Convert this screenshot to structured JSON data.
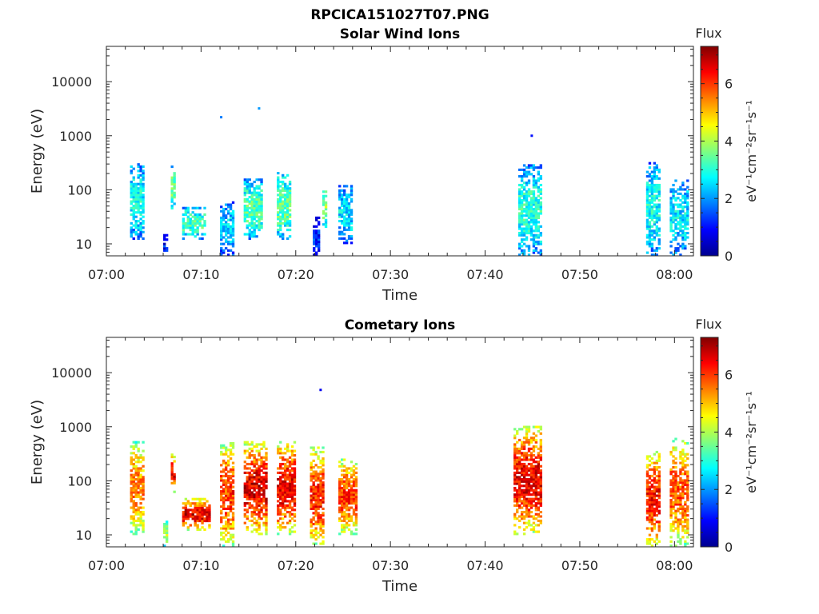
{
  "figure_title": "RPCICA151027T07.PNG",
  "chart_data": [
    {
      "type": "heatmap",
      "title": "Solar Wind Ions",
      "xlabel": "Time",
      "ylabel": "Energy (eV)",
      "yscale": "log",
      "xlim": [
        "07:00",
        "08:02"
      ],
      "ylim": [
        6,
        45000
      ],
      "x_ticks": [
        "07:00",
        "07:10",
        "07:20",
        "07:30",
        "07:40",
        "07:50",
        "08:00"
      ],
      "y_ticks": [
        "10",
        "100",
        "1000",
        "10000"
      ],
      "colorbar": {
        "label": "Flux",
        "units": "eV⁻¹cm⁻²sr⁻¹s⁻¹",
        "ticks": [
          "0",
          "2",
          "4",
          "6"
        ],
        "range": [
          0,
          7.3
        ],
        "colormap": "jet"
      },
      "grid": false,
      "blobs": [
        {
          "start": "07:02.5",
          "end": "07:04",
          "emin": 12,
          "emax": 300,
          "flux": 2.8
        },
        {
          "start": "07:06",
          "end": "07:06.5",
          "emin": 6,
          "emax": 16,
          "flux": 1.0
        },
        {
          "start": "07:06.8",
          "end": "07:07.2",
          "emin": 40,
          "emax": 280,
          "flux": 3.5
        },
        {
          "start": "07:08",
          "end": "07:10.5",
          "emin": 12,
          "emax": 45,
          "flux": 3.2
        },
        {
          "start": "07:12",
          "end": "07:13.5",
          "emin": 6,
          "emax": 60,
          "flux": 2.4
        },
        {
          "start": "07:14.5",
          "end": "07:16.5",
          "emin": 12,
          "emax": 150,
          "flux": 3.3
        },
        {
          "start": "07:18",
          "end": "07:19.5",
          "emin": 12,
          "emax": 200,
          "flux": 3.4
        },
        {
          "start": "07:21.8",
          "end": "07:22.5",
          "emin": 6,
          "emax": 30,
          "flux": 1.2
        },
        {
          "start": "07:22.8",
          "end": "07:23.3",
          "emin": 20,
          "emax": 120,
          "flux": 3.8
        },
        {
          "start": "07:24.5",
          "end": "07:26",
          "emin": 10,
          "emax": 120,
          "flux": 2.5
        },
        {
          "start": "07:43.5",
          "end": "07:46",
          "emin": 6,
          "emax": 280,
          "flux": 3.0
        },
        {
          "start": "07:57",
          "end": "07:58.5",
          "emin": 6,
          "emax": 300,
          "flux": 2.8
        },
        {
          "start": "07:59.5",
          "end": "08:01.5",
          "emin": 6,
          "emax": 150,
          "flux": 2.6
        }
      ],
      "scatter_points": [
        {
          "time": "07:12",
          "energy": 2200,
          "flux": 1.8
        },
        {
          "time": "07:16",
          "energy": 3200,
          "flux": 2.0
        },
        {
          "time": "07:44.8",
          "energy": 1000,
          "flux": 1.0
        }
      ]
    },
    {
      "type": "heatmap",
      "title": "Cometary Ions",
      "xlabel": "Time",
      "ylabel": "Energy (eV)",
      "yscale": "log",
      "xlim": [
        "07:00",
        "08:02"
      ],
      "ylim": [
        6,
        45000
      ],
      "x_ticks": [
        "07:00",
        "07:10",
        "07:20",
        "07:30",
        "07:40",
        "07:50",
        "08:00"
      ],
      "y_ticks": [
        "10",
        "100",
        "1000",
        "10000"
      ],
      "colorbar": {
        "label": "Flux",
        "units": "eV⁻¹cm⁻²sr⁻¹s⁻¹",
        "ticks": [
          "0",
          "2",
          "4",
          "6"
        ],
        "range": [
          0,
          7.3
        ],
        "colormap": "jet"
      },
      "grid": false,
      "blobs": [
        {
          "start": "07:02.5",
          "end": "07:04",
          "emin": 10,
          "emax": 500,
          "flux": 5.5
        },
        {
          "start": "07:06",
          "end": "07:06.5",
          "emin": 6,
          "emax": 20,
          "flux": 4.0
        },
        {
          "start": "07:06.8",
          "end": "07:07.3",
          "emin": 60,
          "emax": 300,
          "flux": 6.5
        },
        {
          "start": "07:08",
          "end": "07:10.8",
          "emin": 12,
          "emax": 45,
          "flux": 6.6
        },
        {
          "start": "07:12",
          "end": "07:13.5",
          "emin": 6,
          "emax": 500,
          "flux": 6.0
        },
        {
          "start": "07:14.5",
          "end": "07:17",
          "emin": 10,
          "emax": 500,
          "flux": 6.6
        },
        {
          "start": "07:18",
          "end": "07:20",
          "emin": 10,
          "emax": 500,
          "flux": 6.5
        },
        {
          "start": "07:21.5",
          "end": "07:23",
          "emin": 6,
          "emax": 400,
          "flux": 6.2
        },
        {
          "start": "07:24.5",
          "end": "07:26.5",
          "emin": 10,
          "emax": 250,
          "flux": 6.0
        },
        {
          "start": "07:43",
          "end": "07:46",
          "emin": 10,
          "emax": 1000,
          "flux": 6.5
        },
        {
          "start": "07:57",
          "end": "07:58.5",
          "emin": 6,
          "emax": 350,
          "flux": 6.3
        },
        {
          "start": "07:59.5",
          "end": "08:01.5",
          "emin": 6,
          "emax": 600,
          "flux": 5.8
        }
      ],
      "scatter_points": [
        {
          "time": "07:22.5",
          "energy": 4800,
          "flux": 0.8
        }
      ]
    }
  ]
}
